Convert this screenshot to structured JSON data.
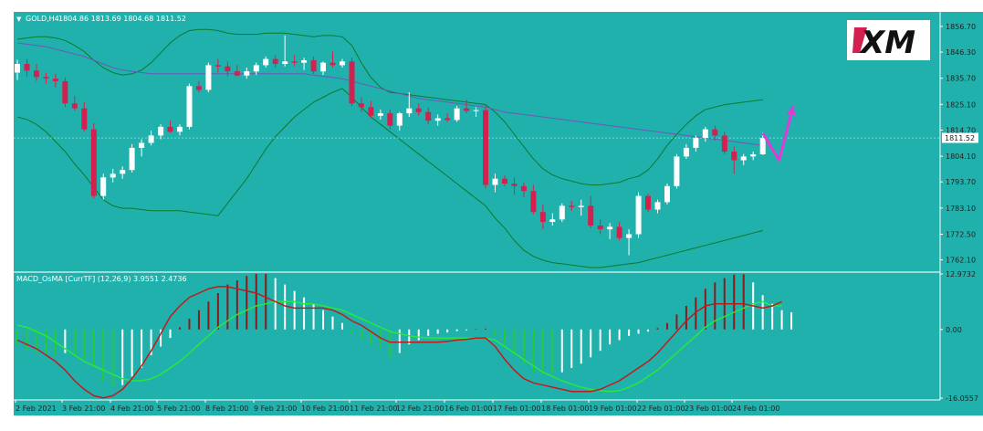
{
  "window": {
    "symbol_label": "GOLD,H4",
    "ohlc_label": "1804.86 1813.69 1804.68 1811.52",
    "logo_text": "XM",
    "triangle_glyph": "▼"
  },
  "colors": {
    "background": "#21b1ad",
    "bull_candle": "#ffffff",
    "bear_candle": "#d3214f",
    "bollinger": "#0a7a2a",
    "ma_line": "#6f57b8",
    "macd_signal": "#27e83c",
    "macd_main": "#c21a1a",
    "hist_positive_up": "#8b1a1a",
    "hist_positive_down": "#ffffff",
    "hist_negative_down": "#27c83c",
    "hist_negative_up": "#ffffff",
    "arrow": "#e23ad8",
    "price_line": "#ffffff"
  },
  "chart_data": [
    {
      "type": "candlestick",
      "symbol": "GOLD",
      "timeframe": "H4",
      "current_price": "1811.52",
      "y_ticks": [
        "1856.70",
        "1846.30",
        "1835.70",
        "1825.10",
        "1814.70",
        "1804.10",
        "1793.70",
        "1783.10",
        "1772.50",
        "1762.10"
      ],
      "y_tick_values": [
        1856.7,
        1846.3,
        1835.7,
        1825.1,
        1814.7,
        1804.1,
        1793.7,
        1783.1,
        1772.5,
        1762.1
      ],
      "ylim": [
        1759,
        1860
      ],
      "x_ticks": [
        "2 Feb 2021",
        "3 Feb 21:00",
        "4 Feb 21:00",
        "5 Feb 21:00",
        "8 Feb 21:00",
        "9 Feb 21:00",
        "10 Feb 21:00",
        "11 Feb 21:00",
        "12 Feb 21:00",
        "16 Feb 01:00",
        "17 Feb 01:00",
        "18 Feb 01:00",
        "19 Feb 01:00",
        "22 Feb 01:00",
        "23 Feb 01:00",
        "24 Feb 01:00"
      ],
      "candles": [
        [
          1838.0,
          1843.2,
          1835.0,
          1841.5
        ],
        [
          1841.5,
          1843.5,
          1836.5,
          1838.8
        ],
        [
          1838.8,
          1841.5,
          1834.5,
          1836.2
        ],
        [
          1836.2,
          1838.0,
          1833.5,
          1835.6
        ],
        [
          1835.6,
          1837.5,
          1832.0,
          1834.5
        ],
        [
          1834.5,
          1836.0,
          1824.0,
          1825.5
        ],
        [
          1825.5,
          1828.5,
          1822.5,
          1823.5
        ],
        [
          1823.5,
          1826.0,
          1814.0,
          1815.0
        ],
        [
          1815.0,
          1817.5,
          1787.0,
          1788.0
        ],
        [
          1788.0,
          1797.0,
          1786.5,
          1795.5
        ],
        [
          1795.5,
          1799.0,
          1793.5,
          1797.0
        ],
        [
          1797.0,
          1800.0,
          1795.0,
          1798.5
        ],
        [
          1798.5,
          1809.0,
          1797.5,
          1807.5
        ],
        [
          1807.5,
          1811.0,
          1804.0,
          1809.5
        ],
        [
          1809.5,
          1814.5,
          1808.5,
          1812.5
        ],
        [
          1812.5,
          1817.0,
          1811.0,
          1816.0
        ],
        [
          1816.0,
          1818.5,
          1813.5,
          1814.0
        ],
        [
          1814.0,
          1817.0,
          1812.5,
          1816.0
        ],
        [
          1816.0,
          1833.5,
          1815.0,
          1832.5
        ],
        [
          1832.5,
          1834.5,
          1830.0,
          1831.0
        ],
        [
          1831.0,
          1842.0,
          1830.0,
          1841.0
        ],
        [
          1841.0,
          1843.5,
          1838.0,
          1840.5
        ],
        [
          1840.5,
          1842.5,
          1836.5,
          1838.5
        ],
        [
          1838.5,
          1841.0,
          1836.5,
          1836.8
        ],
        [
          1836.8,
          1840.0,
          1835.5,
          1838.5
        ],
        [
          1838.5,
          1842.0,
          1837.0,
          1841.0
        ],
        [
          1841.0,
          1844.5,
          1840.0,
          1843.5
        ],
        [
          1843.5,
          1845.0,
          1840.0,
          1841.5
        ],
        [
          1841.5,
          1853.0,
          1840.5,
          1842.5
        ],
        [
          1842.5,
          1845.0,
          1840.5,
          1842.0
        ],
        [
          1842.0,
          1844.0,
          1839.0,
          1843.0
        ],
        [
          1843.0,
          1844.5,
          1837.5,
          1838.5
        ],
        [
          1838.5,
          1842.5,
          1837.0,
          1842.0
        ],
        [
          1842.0,
          1846.5,
          1840.0,
          1841.0
        ],
        [
          1841.0,
          1843.5,
          1840.0,
          1842.5
        ],
        [
          1842.5,
          1844.0,
          1824.5,
          1825.5
        ],
        [
          1825.5,
          1828.0,
          1822.0,
          1824.0
        ],
        [
          1824.0,
          1826.5,
          1819.5,
          1820.5
        ],
        [
          1820.5,
          1823.0,
          1819.0,
          1821.5
        ],
        [
          1821.5,
          1823.0,
          1815.0,
          1816.5
        ],
        [
          1816.5,
          1822.0,
          1814.5,
          1821.5
        ],
        [
          1821.5,
          1830.0,
          1820.0,
          1823.5
        ],
        [
          1823.5,
          1825.5,
          1820.5,
          1822.0
        ],
        [
          1822.0,
          1824.0,
          1817.0,
          1818.5
        ],
        [
          1818.5,
          1821.0,
          1816.5,
          1819.5
        ],
        [
          1819.5,
          1821.5,
          1818.0,
          1818.8
        ],
        [
          1818.8,
          1824.5,
          1818.0,
          1823.5
        ],
        [
          1823.5,
          1827.0,
          1821.5,
          1822.5
        ],
        [
          1822.5,
          1824.0,
          1820.0,
          1822.8
        ],
        [
          1822.8,
          1824.5,
          1791.0,
          1792.5
        ],
        [
          1792.5,
          1797.0,
          1789.5,
          1795.0
        ],
        [
          1795.0,
          1796.5,
          1792.0,
          1793.0
        ],
        [
          1793.0,
          1795.5,
          1788.5,
          1792.0
        ],
        [
          1792.0,
          1793.5,
          1787.5,
          1790.0
        ],
        [
          1790.0,
          1792.5,
          1780.5,
          1781.5
        ],
        [
          1781.5,
          1784.5,
          1774.5,
          1777.5
        ],
        [
          1777.5,
          1781.0,
          1776.0,
          1778.5
        ],
        [
          1778.5,
          1785.0,
          1777.5,
          1784.0
        ],
        [
          1784.0,
          1786.0,
          1782.0,
          1783.5
        ],
        [
          1783.5,
          1786.5,
          1780.0,
          1784.0
        ],
        [
          1784.0,
          1788.0,
          1775.0,
          1776.0
        ],
        [
          1776.0,
          1778.5,
          1772.5,
          1774.5
        ],
        [
          1774.5,
          1777.0,
          1770.5,
          1775.5
        ],
        [
          1775.5,
          1777.5,
          1770.0,
          1771.0
        ],
        [
          1771.0,
          1774.5,
          1764.0,
          1772.5
        ],
        [
          1772.5,
          1789.5,
          1771.0,
          1788.0
        ],
        [
          1788.0,
          1789.0,
          1781.5,
          1782.5
        ],
        [
          1782.5,
          1786.5,
          1781.0,
          1785.5
        ],
        [
          1785.5,
          1793.0,
          1784.5,
          1792.0
        ],
        [
          1792.0,
          1805.0,
          1791.0,
          1804.0
        ],
        [
          1804.0,
          1809.0,
          1803.0,
          1807.5
        ],
        [
          1807.5,
          1812.5,
          1806.0,
          1811.5
        ],
        [
          1811.5,
          1816.0,
          1810.0,
          1815.0
        ],
        [
          1815.0,
          1816.5,
          1810.5,
          1812.5
        ],
        [
          1812.5,
          1814.0,
          1805.0,
          1806.0
        ],
        [
          1806.0,
          1808.0,
          1797.0,
          1802.5
        ],
        [
          1802.5,
          1805.0,
          1800.5,
          1804.0
        ],
        [
          1804.0,
          1806.0,
          1802.5,
          1804.86
        ],
        [
          1804.86,
          1813.69,
          1804.68,
          1811.52
        ]
      ],
      "bollinger_upper": [
        1851.5,
        1852,
        1852.5,
        1852.5,
        1852,
        1851,
        1849,
        1846.5,
        1843,
        1840,
        1838,
        1837,
        1837.5,
        1839,
        1842,
        1846,
        1850,
        1853,
        1855,
        1855.5,
        1855.5,
        1855,
        1854,
        1853.5,
        1853.5,
        1853.5,
        1854,
        1854,
        1854,
        1853.5,
        1853,
        1852.5,
        1853,
        1853,
        1852.5,
        1849,
        1842,
        1836,
        1832,
        1830,
        1829.5,
        1829,
        1828.5,
        1828,
        1827.5,
        1827,
        1826.5,
        1826,
        1825.5,
        1825,
        1822,
        1818,
        1813,
        1808,
        1803,
        1799,
        1796.5,
        1795,
        1794,
        1793,
        1792.5,
        1792.5,
        1793,
        1793.5,
        1795,
        1796,
        1798.5,
        1803,
        1808.5,
        1813,
        1817,
        1820.5,
        1823,
        1824,
        1825,
        1825.5,
        1826,
        1826.5,
        1827
      ],
      "bollinger_lower": [
        1820,
        1819,
        1817,
        1814,
        1810,
        1806,
        1801,
        1796.5,
        1791.5,
        1786.5,
        1784,
        1783,
        1783,
        1782.5,
        1782,
        1782,
        1782,
        1782,
        1781.5,
        1781,
        1780.5,
        1780,
        1785,
        1790,
        1795,
        1801,
        1807,
        1812,
        1816,
        1820,
        1823,
        1826,
        1828,
        1830,
        1831.5,
        1828,
        1824,
        1820,
        1817,
        1814,
        1811,
        1808,
        1805,
        1802,
        1799,
        1796,
        1793,
        1790,
        1787,
        1784,
        1779,
        1775,
        1770,
        1766,
        1763.5,
        1762,
        1761,
        1760.5,
        1760,
        1759.5,
        1759,
        1759,
        1759.5,
        1760,
        1760.5,
        1761,
        1762,
        1763,
        1764,
        1765,
        1766,
        1767,
        1768,
        1769,
        1770,
        1771,
        1772,
        1773,
        1774
      ],
      "ma_line": [
        1850,
        1849.5,
        1849,
        1848.5,
        1847.5,
        1846.5,
        1845.5,
        1844.5,
        1843,
        1841.5,
        1840,
        1839,
        1838.5,
        1838,
        1837.5,
        1837.5,
        1837.5,
        1837.5,
        1837.5,
        1837.5,
        1837.5,
        1837.5,
        1837.5,
        1837.5,
        1837.5,
        1837.5,
        1837.5,
        1837.5,
        1837.5,
        1837.5,
        1837.5,
        1837,
        1836.5,
        1836,
        1835.5,
        1834.5,
        1833.5,
        1832.5,
        1831.5,
        1830.5,
        1829.5,
        1828.5,
        1827.5,
        1827,
        1826.5,
        1826,
        1825.5,
        1825,
        1824.5,
        1824,
        1823,
        1822,
        1821.5,
        1821,
        1820.5,
        1820,
        1819.5,
        1819,
        1818.5,
        1818,
        1817.5,
        1817,
        1816.5,
        1816,
        1815.5,
        1815,
        1814.5,
        1814,
        1813.5,
        1813,
        1812.5,
        1812,
        1811.5,
        1811,
        1810.5,
        1810,
        1809.5,
        1809,
        1808.5
      ],
      "projection_arrow": {
        "points": [
          [
            1813.5,
            0
          ],
          [
            1802.5,
            1.7
          ],
          [
            1824.5,
            3.2
          ]
        ]
      }
    },
    {
      "type": "histogram+line",
      "name": "MACD_OsMA",
      "label": "MACD_OsMA [CurrTF] (12,26,9) 3.9551 2.4736",
      "y_ticks": [
        "12.9732",
        "0.00",
        "-16.0557"
      ],
      "y_tick_values": [
        12.9732,
        0.0,
        -16.0557
      ],
      "ylim": [
        -16.0557,
        12.9732
      ],
      "histogram": [
        -3.5,
        -5,
        -5.5,
        -5.5,
        -6,
        -5.5,
        -6,
        -7,
        -9,
        -12,
        -13.5,
        -13,
        -11,
        -9,
        -6,
        -4,
        -2,
        0.5,
        2.5,
        4.5,
        6.5,
        8.5,
        10.5,
        11.5,
        12.5,
        13,
        13,
        12,
        10.5,
        9,
        7.5,
        6,
        4.5,
        3,
        1.5,
        -1,
        -2.5,
        -3.5,
        -4.5,
        -6.5,
        -5.5,
        -3.5,
        -2.5,
        -1.5,
        -1,
        -0.7,
        -0.4,
        -0.2,
        0.1,
        0.2,
        -1.5,
        -3.5,
        -6,
        -8,
        -10,
        -10.5,
        -10.5,
        -10,
        -9,
        -8,
        -6.5,
        -5,
        -3.5,
        -2.5,
        -1.5,
        -1,
        -0.5,
        0.3,
        1.5,
        3.5,
        5.5,
        7.5,
        9.5,
        11,
        12,
        12.8,
        12.9,
        11,
        8,
        6,
        4.5,
        4
      ],
      "macd_main": [
        -2.5,
        -3.5,
        -4.5,
        -6,
        -7.5,
        -9.5,
        -12,
        -14,
        -15.5,
        -16,
        -15.5,
        -14,
        -11.5,
        -8.5,
        -5,
        -1,
        3,
        5.5,
        7.5,
        8.5,
        9.5,
        10,
        10,
        9.5,
        9,
        8.5,
        7.5,
        6.5,
        5.5,
        5,
        5,
        5,
        5,
        4.5,
        3.5,
        2,
        1,
        -0.5,
        -2,
        -3,
        -3,
        -3,
        -3,
        -3,
        -3,
        -2.8,
        -2.5,
        -2.3,
        -2,
        -2,
        -4,
        -7,
        -9.5,
        -11.5,
        -12.5,
        -13,
        -13.5,
        -14,
        -14.5,
        -14.5,
        -14.5,
        -14,
        -13,
        -12,
        -10.5,
        -9,
        -7.5,
        -5.5,
        -3,
        -0.5,
        2,
        4,
        5.5,
        6,
        6,
        6,
        6,
        5.5,
        5,
        5.5,
        6.5
      ],
      "macd_signal": [
        1,
        0.5,
        -0.5,
        -1.5,
        -3,
        -4.5,
        -6,
        -7.5,
        -8.5,
        -9.5,
        -10.5,
        -11.5,
        -12,
        -12,
        -11.5,
        -10.5,
        -9,
        -7.5,
        -5.5,
        -3.5,
        -1.5,
        0.5,
        2,
        3.5,
        4.5,
        5.5,
        6,
        6.5,
        6.5,
        6.5,
        6,
        6,
        5.5,
        5,
        4.5,
        3.5,
        2.5,
        1.5,
        0.5,
        -0.5,
        -1,
        -1.5,
        -1.8,
        -2,
        -2,
        -2,
        -2,
        -2,
        -2,
        -2,
        -2.5,
        -4,
        -5.5,
        -7,
        -8.5,
        -10,
        -11,
        -12,
        -12.8,
        -13.5,
        -14,
        -14.3,
        -14.5,
        -14.3,
        -13.5,
        -12.5,
        -11,
        -9.5,
        -7.5,
        -5.5,
        -3.5,
        -1.5,
        0.5,
        2,
        3,
        4,
        5,
        6,
        6.5,
        5.5,
        5.5
      ]
    }
  ]
}
